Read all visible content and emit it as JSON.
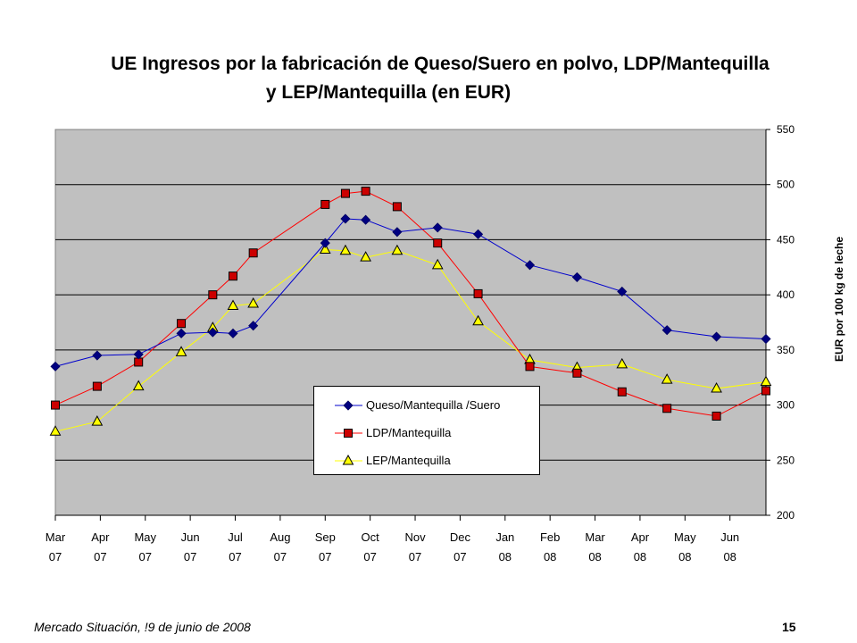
{
  "title_line1": "UE Ingresos por la fabricación de  Queso/Suero en polvo, LDP/Mantequilla",
  "title_line2": "y LEP/Mantequilla (en EUR)",
  "footer_left": "Mercado Situación, !9 de junio de 2008",
  "footer_right": "15",
  "chart_data": {
    "type": "line",
    "ylabel": "EUR por 100 kg de leche",
    "ylim": [
      200,
      550
    ],
    "yticks": [
      200,
      250,
      300,
      350,
      400,
      450,
      500,
      550
    ],
    "y_axis_side": "right",
    "x_range_months": [
      0,
      15.8
    ],
    "categories": [
      {
        "month": "Mar",
        "year": "07"
      },
      {
        "month": "Apr",
        "year": "07"
      },
      {
        "month": "May",
        "year": "07"
      },
      {
        "month": "Jun",
        "year": "07"
      },
      {
        "month": "Jul",
        "year": "07"
      },
      {
        "month": "Aug",
        "year": "07"
      },
      {
        "month": "Sep",
        "year": "07"
      },
      {
        "month": "Oct",
        "year": "07"
      },
      {
        "month": "Nov",
        "year": "07"
      },
      {
        "month": "Dec",
        "year": "07"
      },
      {
        "month": "Jan",
        "year": "08"
      },
      {
        "month": "Feb",
        "year": "08"
      },
      {
        "month": "Mar",
        "year": "08"
      },
      {
        "month": "Apr",
        "year": "08"
      },
      {
        "month": "May",
        "year": "08"
      },
      {
        "month": "Jun",
        "year": "08"
      }
    ],
    "plot_background": "#c0c0c0",
    "grid": "horizontal",
    "legend_position": "center-bottom",
    "series": [
      {
        "name": "Queso/Mantequilla /Suero",
        "color": "#0000cc",
        "marker": "diamond",
        "marker_fill": "#000080",
        "points": [
          [
            0,
            335
          ],
          [
            0.93,
            345
          ],
          [
            1.85,
            346
          ],
          [
            2.8,
            365
          ],
          [
            3.5,
            366
          ],
          [
            3.95,
            365
          ],
          [
            4.4,
            372
          ],
          [
            6.0,
            447
          ],
          [
            6.45,
            469
          ],
          [
            6.9,
            468
          ],
          [
            7.6,
            457
          ],
          [
            8.5,
            461
          ],
          [
            9.4,
            455
          ],
          [
            10.55,
            427
          ],
          [
            11.6,
            416
          ],
          [
            12.6,
            403
          ],
          [
            13.6,
            368
          ],
          [
            14.7,
            362
          ],
          [
            15.8,
            360
          ]
        ]
      },
      {
        "name": "LDP/Mantequilla",
        "color": "#ff0000",
        "marker": "square",
        "marker_fill": "#cc0000",
        "points": [
          [
            0,
            300
          ],
          [
            0.93,
            317
          ],
          [
            1.85,
            339
          ],
          [
            2.8,
            374
          ],
          [
            3.5,
            400
          ],
          [
            3.95,
            417
          ],
          [
            4.4,
            438
          ],
          [
            6.0,
            482
          ],
          [
            6.45,
            492
          ],
          [
            6.9,
            494
          ],
          [
            7.6,
            480
          ],
          [
            8.5,
            447
          ],
          [
            9.4,
            401
          ],
          [
            10.55,
            335
          ],
          [
            11.6,
            329
          ],
          [
            12.6,
            312
          ],
          [
            13.6,
            297
          ],
          [
            14.7,
            290
          ],
          [
            15.8,
            313
          ]
        ]
      },
      {
        "name": "LEP/Mantequilla",
        "color": "#ffff00",
        "marker": "triangle",
        "marker_fill": "#ffff00",
        "points": [
          [
            0,
            276
          ],
          [
            0.93,
            285
          ],
          [
            1.85,
            317
          ],
          [
            2.8,
            348
          ],
          [
            3.5,
            370
          ],
          [
            3.95,
            390
          ],
          [
            4.4,
            392
          ],
          [
            6.0,
            441
          ],
          [
            6.45,
            440
          ],
          [
            6.9,
            434
          ],
          [
            7.6,
            440
          ],
          [
            8.5,
            427
          ],
          [
            9.4,
            376
          ],
          [
            10.55,
            341
          ],
          [
            11.6,
            334
          ],
          [
            12.6,
            337
          ],
          [
            13.6,
            323
          ],
          [
            14.7,
            315
          ],
          [
            15.8,
            321
          ]
        ]
      }
    ]
  }
}
